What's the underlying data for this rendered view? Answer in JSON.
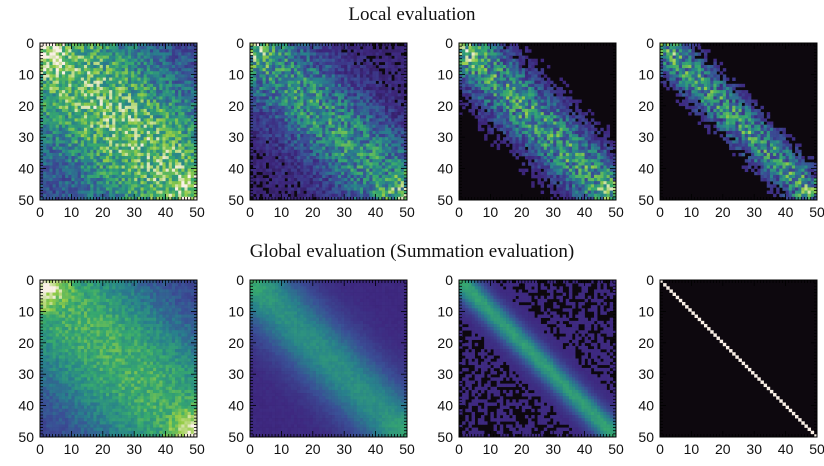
{
  "rows": [
    {
      "title": "Local evaluation"
    },
    {
      "title": "Global evaluation (Summation evaluation)"
    }
  ],
  "chart_data": [
    {
      "type": "heatmap",
      "row": 0,
      "col": 0,
      "size": 50,
      "band_width": 22,
      "noise": 0.28,
      "threshold": 0.0,
      "background_level": 0.32,
      "peak": 0.78,
      "corner_boost": 0.25,
      "xticks": [
        "0",
        "10",
        "20",
        "30",
        "40",
        "50"
      ],
      "yticks": [
        "0",
        "10",
        "20",
        "30",
        "40",
        "50"
      ],
      "xlim": [
        0,
        50
      ],
      "ylim": [
        50,
        0
      ]
    },
    {
      "type": "heatmap",
      "row": 0,
      "col": 1,
      "size": 50,
      "band_width": 14,
      "noise": 0.35,
      "threshold": 0.18,
      "background_level": 0.2,
      "peak": 0.6,
      "corner_boost": 0.2,
      "xticks": [
        "0",
        "10",
        "20",
        "30",
        "40",
        "50"
      ],
      "yticks": [
        "0",
        "10",
        "20",
        "30",
        "40",
        "50"
      ],
      "xlim": [
        0,
        50
      ],
      "ylim": [
        50,
        0
      ]
    },
    {
      "type": "heatmap",
      "row": 0,
      "col": 2,
      "size": 50,
      "band_width": 10,
      "noise": 0.4,
      "threshold": 0.22,
      "background_level": 0.12,
      "peak": 0.62,
      "corner_boost": 0.15,
      "xticks": [
        "0",
        "10",
        "20",
        "30",
        "40",
        "50"
      ],
      "yticks": [
        "0",
        "10",
        "20",
        "30",
        "40",
        "50"
      ],
      "xlim": [
        0,
        50
      ],
      "ylim": [
        50,
        0
      ]
    },
    {
      "type": "heatmap",
      "row": 0,
      "col": 3,
      "size": 50,
      "band_width": 7,
      "noise": 0.45,
      "threshold": 0.25,
      "background_level": 0.1,
      "peak": 0.6,
      "corner_boost": 0.1,
      "xticks": [
        "0",
        "10",
        "20",
        "30",
        "40",
        "50"
      ],
      "yticks": [
        "0",
        "10",
        "20",
        "30",
        "40",
        "50"
      ],
      "xlim": [
        0,
        50
      ],
      "ylim": [
        50,
        0
      ]
    },
    {
      "type": "heatmap",
      "row": 1,
      "col": 0,
      "size": 50,
      "band_width": 24,
      "noise": 0.12,
      "threshold": 0.0,
      "background_level": 0.3,
      "peak": 0.72,
      "corner_boost": 0.35,
      "xticks": [
        "0",
        "10",
        "20",
        "30",
        "40",
        "50"
      ],
      "yticks": [
        "0",
        "10",
        "20",
        "30",
        "40",
        "50"
      ],
      "xlim": [
        0,
        50
      ],
      "ylim": [
        50,
        0
      ]
    },
    {
      "type": "heatmap",
      "row": 1,
      "col": 1,
      "size": 50,
      "band_width": 11,
      "noise": 0.05,
      "threshold": 0.2,
      "background_level": 0.25,
      "peak": 0.6,
      "corner_boost": 0.1,
      "xticks": [
        "0",
        "10",
        "20",
        "30",
        "40",
        "50"
      ],
      "yticks": [
        "0",
        "10",
        "20",
        "30",
        "40",
        "50"
      ],
      "xlim": [
        0,
        50
      ],
      "ylim": [
        50,
        0
      ]
    },
    {
      "type": "heatmap",
      "row": 1,
      "col": 2,
      "size": 50,
      "band_width": 4,
      "noise": 0.04,
      "threshold": 0.25,
      "background_level": 0.25,
      "peak": 0.65,
      "corner_boost": 0.05,
      "xticks": [
        "0",
        "10",
        "20",
        "30",
        "40",
        "50"
      ],
      "yticks": [
        "0",
        "10",
        "20",
        "30",
        "40",
        "50"
      ],
      "xlim": [
        0,
        50
      ],
      "ylim": [
        50,
        0
      ]
    },
    {
      "type": "heatmap",
      "row": 1,
      "col": 3,
      "size": 50,
      "band_width": 0.6,
      "noise": 0.0,
      "threshold": 0.5,
      "background_level": 0.0,
      "peak": 1.0,
      "corner_boost": 0.0,
      "xticks": [
        "0",
        "10",
        "20",
        "30",
        "40",
        "50"
      ],
      "yticks": [
        "0",
        "10",
        "20",
        "30",
        "40",
        "50"
      ],
      "xlim": [
        0,
        50
      ],
      "ylim": [
        50,
        0
      ]
    }
  ]
}
